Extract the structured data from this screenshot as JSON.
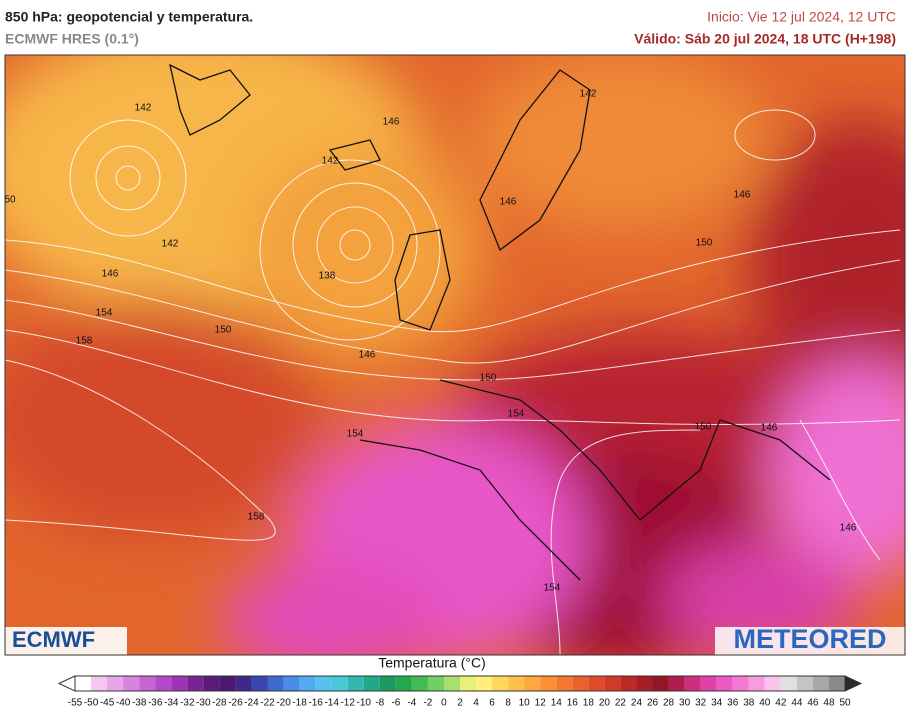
{
  "header": {
    "title": "850 hPa: geopotencial y temperatura.",
    "model": "ECMWF HRES (0.1°)",
    "init": "Inicio: Vie 12 jul 2024, 12 UTC",
    "valid": "Válido: Sáb 20 jul 2024, 18 UTC (H+198)"
  },
  "map": {
    "contour_labels": [
      142,
      142,
      146,
      142,
      146,
      146,
      142,
      150,
      146,
      138,
      154,
      150,
      158,
      146,
      150,
      154,
      150,
      146,
      154,
      158,
      146,
      154,
      50
    ],
    "logos": [
      "ECMWF",
      "METEORED"
    ]
  },
  "colorbar": {
    "title": "Temperatura (°C)",
    "ticks": [
      -55,
      -50,
      -45,
      -40,
      -38,
      -36,
      -34,
      -32,
      -30,
      -28,
      -26,
      -24,
      -22,
      -20,
      -18,
      -16,
      -14,
      -12,
      -10,
      -8,
      -6,
      -4,
      -2,
      0,
      2,
      4,
      6,
      8,
      10,
      12,
      14,
      16,
      18,
      20,
      22,
      24,
      26,
      28,
      30,
      32,
      34,
      36,
      38,
      40,
      42,
      44,
      46,
      48,
      50
    ]
  }
}
